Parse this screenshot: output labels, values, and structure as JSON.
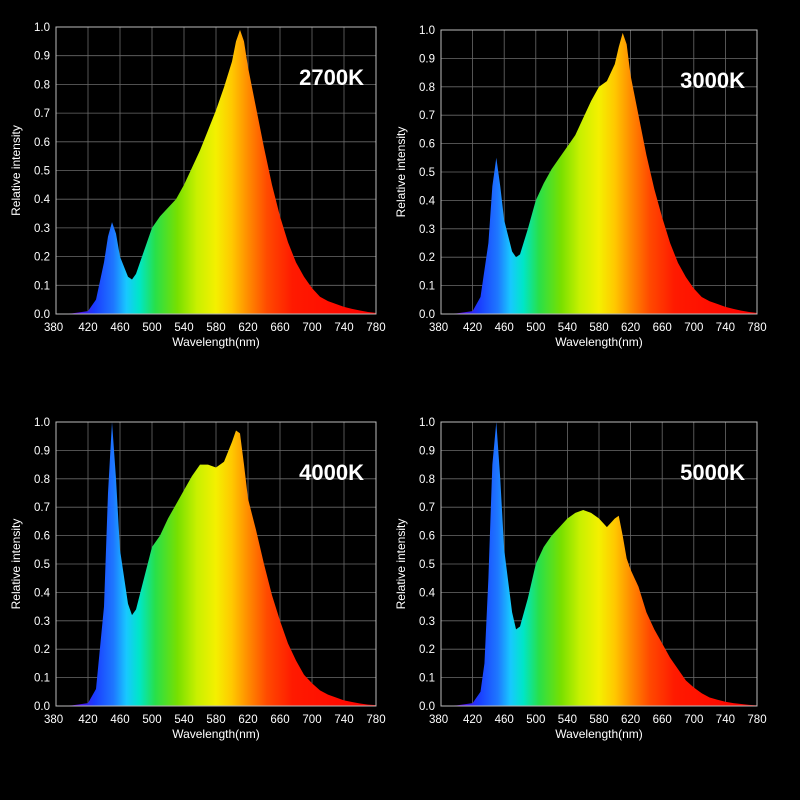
{
  "chart_data": [
    {
      "type": "area",
      "title": "2700K",
      "xlabel": "Wavelength(nm)",
      "ylabel": "Relative intensity",
      "xlim": [
        380,
        780
      ],
      "ylim": [
        0,
        1.0
      ],
      "x_ticks": [
        "380",
        "420",
        "460",
        "500",
        "540",
        "580",
        "620",
        "660",
        "700",
        "740",
        "780"
      ],
      "y_ticks": [
        "0.0",
        "0.1",
        "0.2",
        "0.3",
        "0.4",
        "0.5",
        "0.6",
        "0.7",
        "0.8",
        "0.9",
        "1.0"
      ],
      "grid": true,
      "x": [
        380,
        400,
        420,
        430,
        440,
        445,
        450,
        455,
        460,
        470,
        475,
        480,
        490,
        500,
        510,
        520,
        530,
        540,
        550,
        560,
        570,
        580,
        590,
        600,
        605,
        610,
        615,
        620,
        630,
        640,
        650,
        660,
        670,
        680,
        690,
        700,
        710,
        720,
        730,
        740,
        750,
        760,
        770,
        780
      ],
      "y": [
        0,
        0.002,
        0.01,
        0.05,
        0.18,
        0.27,
        0.32,
        0.28,
        0.2,
        0.13,
        0.12,
        0.14,
        0.22,
        0.3,
        0.34,
        0.37,
        0.4,
        0.45,
        0.51,
        0.57,
        0.64,
        0.71,
        0.79,
        0.88,
        0.95,
        0.99,
        0.95,
        0.86,
        0.72,
        0.58,
        0.45,
        0.34,
        0.25,
        0.18,
        0.13,
        0.09,
        0.06,
        0.045,
        0.035,
        0.025,
        0.018,
        0.012,
        0.007,
        0.004
      ]
    },
    {
      "type": "area",
      "title": "3000K",
      "xlabel": "Wavelength(nm)",
      "ylabel": "Relative intensity",
      "xlim": [
        380,
        780
      ],
      "ylim": [
        0,
        1.0
      ],
      "x_ticks": [
        "380",
        "420",
        "460",
        "500",
        "540",
        "580",
        "620",
        "660",
        "700",
        "740",
        "780"
      ],
      "y_ticks": [
        "0.0",
        "0.1",
        "0.2",
        "0.3",
        "0.4",
        "0.5",
        "0.6",
        "0.7",
        "0.8",
        "0.9",
        "1.0"
      ],
      "grid": true,
      "x": [
        380,
        400,
        420,
        430,
        440,
        445,
        450,
        455,
        460,
        470,
        475,
        480,
        490,
        500,
        510,
        520,
        530,
        540,
        550,
        560,
        570,
        580,
        590,
        600,
        605,
        610,
        615,
        620,
        630,
        640,
        650,
        660,
        670,
        680,
        690,
        700,
        710,
        720,
        730,
        740,
        750,
        760,
        770,
        780
      ],
      "y": [
        0,
        0.002,
        0.01,
        0.06,
        0.25,
        0.45,
        0.55,
        0.45,
        0.33,
        0.22,
        0.2,
        0.21,
        0.3,
        0.4,
        0.46,
        0.51,
        0.55,
        0.59,
        0.63,
        0.69,
        0.75,
        0.8,
        0.82,
        0.88,
        0.94,
        0.99,
        0.95,
        0.84,
        0.7,
        0.56,
        0.44,
        0.34,
        0.25,
        0.18,
        0.13,
        0.09,
        0.06,
        0.045,
        0.035,
        0.025,
        0.018,
        0.012,
        0.007,
        0.004
      ]
    },
    {
      "type": "area",
      "title": "4000K",
      "xlabel": "Wavelength(nm)",
      "ylabel": "Relative intensity",
      "xlim": [
        380,
        780
      ],
      "ylim": [
        0,
        1.0
      ],
      "x_ticks": [
        "380",
        "420",
        "460",
        "500",
        "540",
        "580",
        "620",
        "660",
        "700",
        "740",
        "780"
      ],
      "y_ticks": [
        "0.0",
        "0.1",
        "0.2",
        "0.3",
        "0.4",
        "0.5",
        "0.6",
        "0.7",
        "0.8",
        "0.9",
        "1.0"
      ],
      "grid": true,
      "x": [
        380,
        400,
        420,
        430,
        440,
        445,
        450,
        455,
        460,
        470,
        475,
        480,
        490,
        500,
        510,
        520,
        530,
        540,
        550,
        560,
        570,
        580,
        590,
        600,
        605,
        610,
        615,
        620,
        630,
        640,
        650,
        660,
        670,
        680,
        690,
        700,
        710,
        720,
        730,
        740,
        750,
        760,
        770,
        780
      ],
      "y": [
        0,
        0.002,
        0.01,
        0.06,
        0.35,
        0.75,
        1.0,
        0.8,
        0.55,
        0.36,
        0.32,
        0.34,
        0.45,
        0.56,
        0.6,
        0.66,
        0.71,
        0.76,
        0.81,
        0.85,
        0.85,
        0.84,
        0.86,
        0.93,
        0.97,
        0.96,
        0.85,
        0.73,
        0.62,
        0.5,
        0.39,
        0.3,
        0.22,
        0.16,
        0.11,
        0.08,
        0.055,
        0.04,
        0.03,
        0.02,
        0.014,
        0.009,
        0.005,
        0.003
      ]
    },
    {
      "type": "area",
      "title": "5000K",
      "xlabel": "Wavelength(nm)",
      "ylabel": "Relative intensity",
      "xlim": [
        380,
        780
      ],
      "ylim": [
        0,
        1.0
      ],
      "x_ticks": [
        "380",
        "420",
        "460",
        "500",
        "540",
        "580",
        "620",
        "660",
        "700",
        "740",
        "780"
      ],
      "y_ticks": [
        "0.0",
        "0.1",
        "0.2",
        "0.3",
        "0.4",
        "0.5",
        "0.6",
        "0.7",
        "0.8",
        "0.9",
        "1.0"
      ],
      "grid": true,
      "x": [
        380,
        400,
        420,
        430,
        435,
        440,
        445,
        450,
        455,
        460,
        470,
        475,
        480,
        490,
        500,
        510,
        520,
        530,
        540,
        550,
        560,
        570,
        580,
        590,
        600,
        605,
        610,
        615,
        620,
        630,
        640,
        650,
        660,
        670,
        680,
        690,
        700,
        710,
        720,
        730,
        740,
        750,
        760,
        770,
        780
      ],
      "y": [
        0,
        0.002,
        0.01,
        0.05,
        0.15,
        0.45,
        0.85,
        1.0,
        0.8,
        0.55,
        0.33,
        0.27,
        0.28,
        0.38,
        0.5,
        0.56,
        0.6,
        0.63,
        0.66,
        0.68,
        0.69,
        0.68,
        0.66,
        0.63,
        0.66,
        0.67,
        0.6,
        0.52,
        0.48,
        0.42,
        0.33,
        0.27,
        0.22,
        0.17,
        0.13,
        0.09,
        0.065,
        0.045,
        0.03,
        0.022,
        0.015,
        0.01,
        0.007,
        0.004,
        0.002
      ]
    }
  ]
}
